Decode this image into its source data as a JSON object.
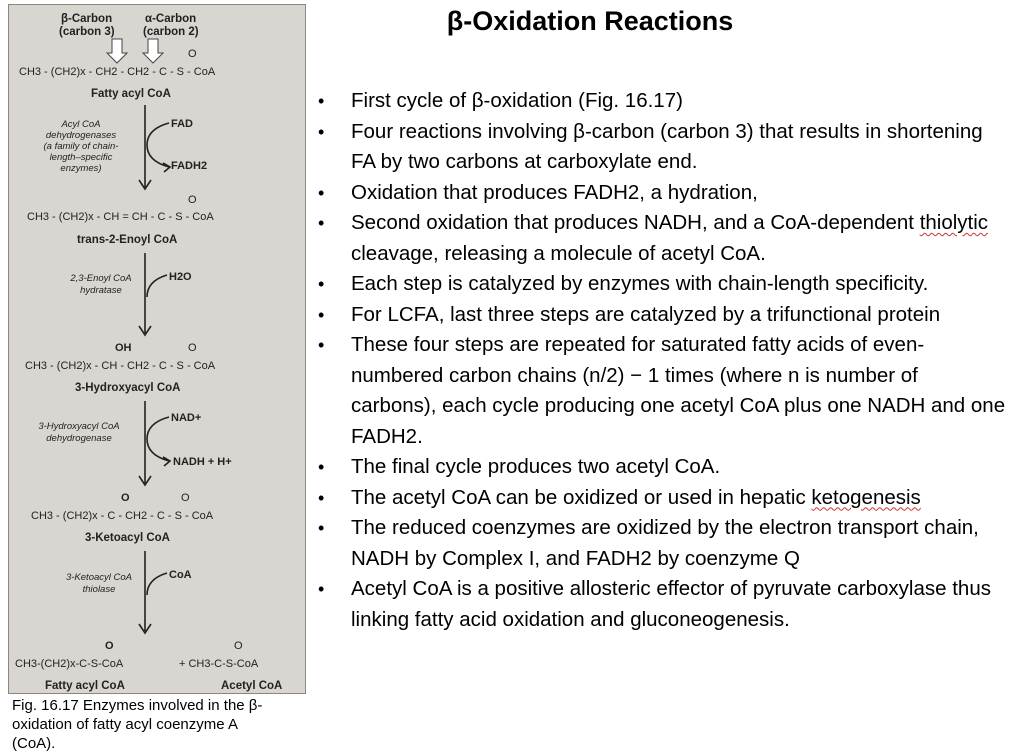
{
  "title": "β-Oxidation Reactions",
  "bullets": [
    {
      "text": "First cycle of β-oxidation (Fig. 16.17)"
    },
    {
      "text": "Four reactions involving β-carbon (carbon 3) that results in shortening FA by two carbons at carboxylate end."
    },
    {
      "text": "Oxidation that produces FADH2, a hydration,"
    },
    {
      "pre": "Second oxidation that produces NADH, and a CoA-dependent ",
      "squiggle": "thiolytic",
      "post": " cleavage, releasing a molecule of acetyl CoA."
    },
    {
      "text": "Each step is catalyzed by enzymes with chain-length specificity."
    },
    {
      "text": "For LCFA, last three steps are catalyzed by a trifunctional protein"
    },
    {
      "text": "These four steps are repeated for saturated fatty acids of even-numbered carbon chains (n/2) − 1 times (where n is number of carbons), each cycle producing one acetyl CoA plus one NADH and one FADH2."
    },
    {
      "text": "The final cycle produces two acetyl CoA."
    },
    {
      "pre": "The acetyl CoA can be oxidized or used in hepatic ",
      "squiggle": "ketogenesis",
      "post": ""
    },
    {
      "text": "The reduced coenzymes are oxidized by the electron transport chain, NADH by Complex I, and FADH2 by coenzyme Q"
    },
    {
      "text": "Acetyl CoA is a positive allosteric effector of pyruvate carboxylase thus linking fatty acid oxidation and gluconeogenesis."
    }
  ],
  "figure": {
    "beta_carbon": "β-Carbon",
    "beta_carbon_sub": "(carbon 3)",
    "alpha_carbon": "α-Carbon",
    "alpha_carbon_sub": "(carbon 2)",
    "compounds": [
      {
        "formula": "CH3 - (CH2)x - CH2 - CH2 - C - S - CoA",
        "name": "Fatty acyl CoA"
      },
      {
        "formula": "CH3 - (CH2)x - CH = CH - C - S - CoA",
        "name": "trans-2-Enoyl CoA"
      },
      {
        "formula": "CH3 - (CH2)x - CH - CH2 - C - S - CoA",
        "name": "3-Hydroxyacyl CoA"
      },
      {
        "formula": "CH3 - (CH2)x - C - CH2 - C - S - CoA",
        "name": "3-Ketoacyl CoA"
      }
    ],
    "steps": [
      {
        "enzyme": [
          "Acyl CoA",
          "dehydrogenases",
          "(a family of chain-",
          "length–specific",
          "enzymes)"
        ],
        "in": "FAD",
        "out": "FADH2"
      },
      {
        "enzyme": [
          "2,3-Enoyl CoA",
          "hydratase"
        ],
        "in": "H2O",
        "out": ""
      },
      {
        "enzyme": [
          "3-Hydroxyacyl CoA",
          "dehydrogenase"
        ],
        "in": "NAD+",
        "out": "NADH + H+"
      },
      {
        "enzyme": [
          "3-Ketoacyl CoA",
          "thiolase"
        ],
        "in": "CoA",
        "out": ""
      }
    ],
    "products": [
      {
        "formula": "CH3-(CH2)x-C-S-CoA",
        "name": "Fatty acyl CoA"
      },
      {
        "formula": "+ CH3-C-S-CoA",
        "name": "Acetyl CoA"
      }
    ],
    "oh_label": "OH",
    "o_label": "O"
  },
  "caption": "Fig. 16.17 Enzymes involved in the β-oxidation of fatty acyl coenzyme A (CoA)."
}
